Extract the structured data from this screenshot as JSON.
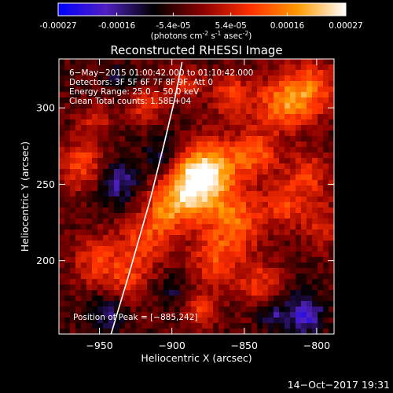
{
  "colorbar": {
    "ticks": [
      "-0.00027",
      "-0.00016",
      "-5.4e-05",
      "5.4e-05",
      "0.00016",
      "0.00027"
    ],
    "tick_values": [
      -0.00027,
      -0.00016,
      -5.4e-05,
      5.4e-05,
      0.00016,
      0.00027
    ],
    "range": [
      -0.00027,
      0.00027
    ],
    "units_prefix": "(photons cm",
    "units_exp1": "-2",
    "units_mid1": " s",
    "units_exp2": "-1",
    "units_mid2": " asec",
    "units_exp3": "-2",
    "units_suffix": ")",
    "gradient": [
      "#0000ff",
      "#5020c0",
      "#000000",
      "#8a0000",
      "#ff3000",
      "#ff9a00",
      "#ffffff"
    ]
  },
  "chart_data": {
    "type": "heatmap",
    "title": "Reconstructed RHESSI Image",
    "xlabel": "Heliocentric X (arcsec)",
    "ylabel": "Heliocentric Y (arcsec)",
    "xlim": [
      -978,
      -788
    ],
    "ylim": [
      152,
      332
    ],
    "xticks": [
      -950,
      -900,
      -850,
      -800
    ],
    "yticks": [
      200,
      250,
      300
    ],
    "xtick_labels": [
      "−950",
      "−900",
      "−850",
      "−800"
    ],
    "ytick_labels": [
      "200",
      "250",
      "300"
    ],
    "annotations": [
      "6−May−2015 01:00:42.000 to 01:10:42.000",
      "Detectors: 3F 5F 6F 7F 8F 9F, Att 0",
      "Energy Range: 25.0 − 50.0 keV",
      "Clean     Total counts: 1.58E+04"
    ],
    "peak_label": "Position of Peak = [−885,242]",
    "peak": [
      -885,
      242
    ],
    "sources": [
      {
        "x": -887,
        "y": 248,
        "r": 15,
        "amp": 0.00027
      },
      {
        "x": -872,
        "y": 262,
        "r": 14,
        "amp": 0.00017
      },
      {
        "x": -855,
        "y": 226,
        "r": 14,
        "amp": 0.00016
      },
      {
        "x": -842,
        "y": 270,
        "r": 11,
        "amp": 0.00015
      },
      {
        "x": -825,
        "y": 302,
        "r": 12,
        "amp": 0.00016
      },
      {
        "x": -805,
        "y": 312,
        "r": 13,
        "amp": 0.00017
      },
      {
        "x": -806,
        "y": 255,
        "r": 12,
        "amp": 0.00012
      },
      {
        "x": -858,
        "y": 308,
        "r": 10,
        "amp": 0.00013
      },
      {
        "x": -870,
        "y": 200,
        "r": 12,
        "amp": 0.00013
      },
      {
        "x": -840,
        "y": 185,
        "r": 10,
        "amp": 0.00012
      },
      {
        "x": -905,
        "y": 230,
        "r": 10,
        "amp": 0.00012
      },
      {
        "x": -920,
        "y": 212,
        "r": 12,
        "amp": 0.00013
      },
      {
        "x": -930,
        "y": 188,
        "r": 10,
        "amp": 0.0001
      },
      {
        "x": -952,
        "y": 200,
        "r": 12,
        "amp": 0.00012
      },
      {
        "x": -962,
        "y": 262,
        "r": 11,
        "amp": 0.00014
      },
      {
        "x": -918,
        "y": 302,
        "r": 9,
        "amp": 0.00011
      },
      {
        "x": -953,
        "y": 292,
        "r": 9,
        "amp": 8e-05
      },
      {
        "x": -880,
        "y": 168,
        "r": 8,
        "amp": 0.00012
      },
      {
        "x": -795,
        "y": 222,
        "r": 10,
        "amp": 0.0001
      },
      {
        "x": -822,
        "y": 235,
        "r": 10,
        "amp": 0.00011
      },
      {
        "x": -890,
        "y": 316,
        "r": 8,
        "amp": 0.0001
      },
      {
        "x": -937,
        "y": 252,
        "r": 10,
        "amp": -0.00012
      },
      {
        "x": -905,
        "y": 268,
        "r": 10,
        "amp": -0.00011
      },
      {
        "x": -945,
        "y": 165,
        "r": 9,
        "amp": -0.0001
      },
      {
        "x": -808,
        "y": 165,
        "r": 9,
        "amp": -0.00016
      },
      {
        "x": -830,
        "y": 165,
        "r": 7,
        "amp": -0.0001
      },
      {
        "x": -935,
        "y": 318,
        "r": 7,
        "amp": -8e-05
      },
      {
        "x": -900,
        "y": 180,
        "r": 7,
        "amp": -7e-05
      }
    ],
    "limb_curve": [
      [
        -942,
        152
      ],
      [
        -930,
        190
      ],
      [
        -915,
        240
      ],
      [
        -905,
        278
      ],
      [
        -898,
        306
      ],
      [
        -893,
        330
      ]
    ],
    "limb_color": "#ffffff"
  },
  "footer": {
    "timestamp": "14−Oct−2017 19:31"
  }
}
